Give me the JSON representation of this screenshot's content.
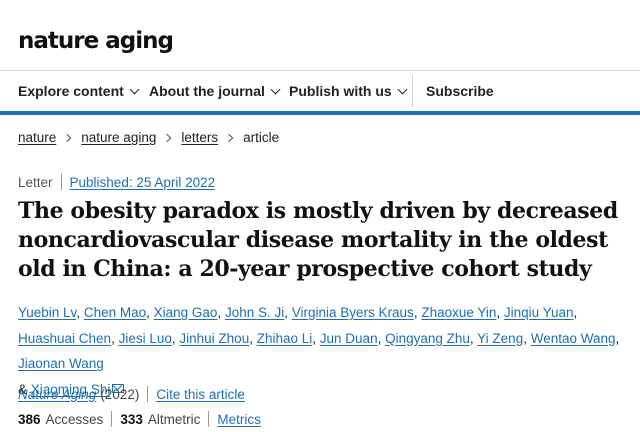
{
  "site": {
    "logo": "nature aging"
  },
  "nav": {
    "items": [
      {
        "label": "Explore content"
      },
      {
        "label": "About the journal"
      },
      {
        "label": "Publish with us"
      }
    ],
    "subscribe": "Subscribe"
  },
  "breadcrumb": [
    "nature",
    "nature aging",
    "letters",
    "article"
  ],
  "article": {
    "type": "Letter",
    "published": "Published: 25 April 2022",
    "title": "The obesity paradox is mostly driven by decreased noncardiovascular disease mortality in the oldest old in China: a 20-year prospective cohort study",
    "authors": [
      "Yuebin Lv",
      "Chen Mao",
      "Xiang Gao",
      "John S. Ji",
      "Virginia Byers Kraus",
      "Zhaoxue Yin",
      "Jinqiu Yuan",
      "Huashuai Chen",
      "Jiesi Luo",
      "Jinhui Zhou",
      "Zhihao Li",
      "Jun Duan",
      "Qingyang Zhu",
      "Yi Zeng",
      "Wentao Wang",
      "Jiaonan Wang",
      "Xiaoming Shi"
    ],
    "author_joiner": "&",
    "journal": "Nature Aging",
    "year": "(2022)",
    "cite_label": "Cite this article",
    "accesses_count": "386",
    "accesses_label": "Accesses",
    "altmetric_count": "333",
    "altmetric_label": "Altmetric",
    "metrics_label": "Metrics"
  },
  "colors": {
    "link": "#1f6fb2",
    "nav_underline": "#1f6fb2"
  },
  "icons": {
    "author_email": "envelope-icon",
    "nav_dropdown": "chevron-down-icon",
    "breadcrumb_separator": "chevron-right-icon"
  }
}
